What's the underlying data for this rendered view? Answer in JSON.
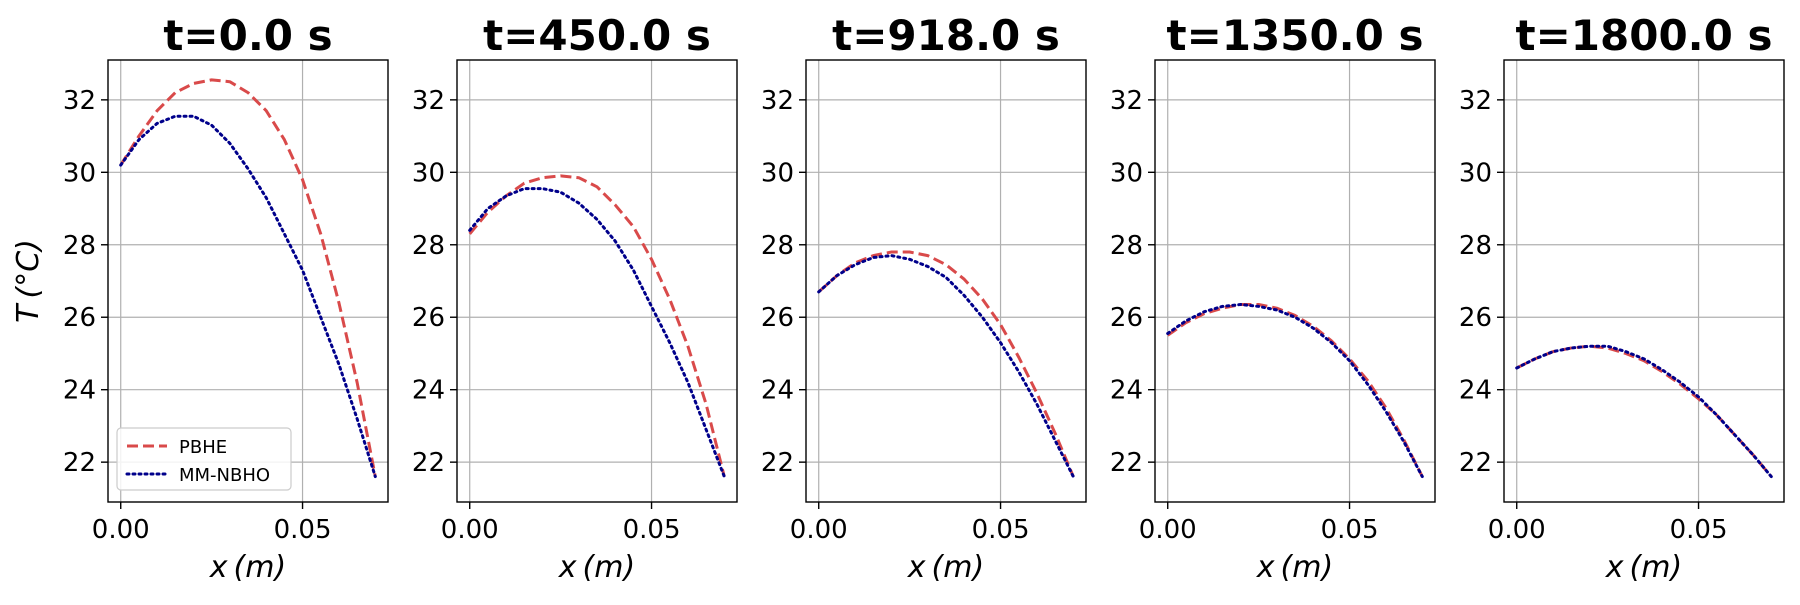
{
  "colors": {
    "pbhe": "#d94a4a",
    "mm_nbho": "#00008b",
    "grid": "#b0b0b0",
    "axes": "#000000"
  },
  "chart_data": [
    {
      "type": "line",
      "title": "t=0.0 s",
      "xlabel": "x (m)",
      "ylabel": "T (°C)",
      "xlim": [
        -0.0035,
        0.0735
      ],
      "ylim": [
        20.9,
        33.1
      ],
      "xticks": [
        0.0,
        0.05
      ],
      "xtick_labels": [
        "0.00",
        "0.05"
      ],
      "yticks": [
        22,
        24,
        26,
        28,
        30,
        32
      ],
      "ytick_labels": [
        "22",
        "24",
        "26",
        "28",
        "30",
        "32"
      ],
      "grid": true,
      "legend": "lower-left",
      "series": [
        {
          "name": "PBHE",
          "style": "dashed",
          "x": [
            0.0,
            0.005,
            0.01,
            0.015,
            0.02,
            0.025,
            0.03,
            0.035,
            0.04,
            0.045,
            0.05,
            0.055,
            0.06,
            0.065,
            0.07
          ],
          "y": [
            30.2,
            31.0,
            31.7,
            32.2,
            32.45,
            32.55,
            32.5,
            32.2,
            31.7,
            30.9,
            29.8,
            28.3,
            26.4,
            24.2,
            21.6
          ]
        },
        {
          "name": "MM-NBHO",
          "style": "dotted",
          "x": [
            0.0,
            0.005,
            0.01,
            0.015,
            0.02,
            0.025,
            0.03,
            0.035,
            0.04,
            0.045,
            0.05,
            0.055,
            0.06,
            0.065,
            0.07
          ],
          "y": [
            30.2,
            30.9,
            31.35,
            31.55,
            31.55,
            31.3,
            30.8,
            30.1,
            29.3,
            28.3,
            27.3,
            26.0,
            24.7,
            23.2,
            21.6
          ]
        }
      ]
    },
    {
      "type": "line",
      "title": "t=450.0 s",
      "xlabel": "x (m)",
      "ylabel": "",
      "xlim": [
        -0.0035,
        0.0735
      ],
      "ylim": [
        20.9,
        33.1
      ],
      "xticks": [
        0.0,
        0.05
      ],
      "xtick_labels": [
        "0.00",
        "0.05"
      ],
      "yticks": [
        22,
        24,
        26,
        28,
        30,
        32
      ],
      "ytick_labels": [
        "22",
        "24",
        "26",
        "28",
        "30",
        "32"
      ],
      "grid": true,
      "series": [
        {
          "name": "PBHE",
          "style": "dashed",
          "x": [
            0.0,
            0.005,
            0.01,
            0.015,
            0.02,
            0.025,
            0.03,
            0.035,
            0.04,
            0.045,
            0.05,
            0.055,
            0.06,
            0.065,
            0.07
          ],
          "y": [
            28.3,
            28.9,
            29.35,
            29.7,
            29.85,
            29.9,
            29.85,
            29.6,
            29.1,
            28.5,
            27.6,
            26.5,
            25.2,
            23.6,
            21.6
          ]
        },
        {
          "name": "MM-NBHO",
          "style": "dotted",
          "x": [
            0.0,
            0.005,
            0.01,
            0.015,
            0.02,
            0.025,
            0.03,
            0.035,
            0.04,
            0.045,
            0.05,
            0.055,
            0.06,
            0.065,
            0.07
          ],
          "y": [
            28.4,
            29.0,
            29.35,
            29.55,
            29.55,
            29.45,
            29.15,
            28.7,
            28.1,
            27.3,
            26.3,
            25.3,
            24.2,
            22.9,
            21.6
          ]
        }
      ]
    },
    {
      "type": "line",
      "title": "t=918.0 s",
      "xlabel": "x (m)",
      "ylabel": "",
      "xlim": [
        -0.0035,
        0.0735
      ],
      "ylim": [
        20.9,
        33.1
      ],
      "xticks": [
        0.0,
        0.05
      ],
      "xtick_labels": [
        "0.00",
        "0.05"
      ],
      "yticks": [
        22,
        24,
        26,
        28,
        30,
        32
      ],
      "ytick_labels": [
        "22",
        "24",
        "26",
        "28",
        "30",
        "32"
      ],
      "grid": true,
      "series": [
        {
          "name": "PBHE",
          "style": "dashed",
          "x": [
            0.0,
            0.005,
            0.01,
            0.015,
            0.02,
            0.025,
            0.03,
            0.035,
            0.04,
            0.045,
            0.05,
            0.055,
            0.06,
            0.065,
            0.07
          ],
          "y": [
            26.7,
            27.15,
            27.5,
            27.7,
            27.8,
            27.8,
            27.7,
            27.45,
            27.05,
            26.5,
            25.8,
            24.9,
            23.9,
            22.8,
            21.6
          ]
        },
        {
          "name": "MM-NBHO",
          "style": "dotted",
          "x": [
            0.0,
            0.005,
            0.01,
            0.015,
            0.02,
            0.025,
            0.03,
            0.035,
            0.04,
            0.045,
            0.05,
            0.055,
            0.06,
            0.065,
            0.07
          ],
          "y": [
            26.7,
            27.15,
            27.45,
            27.65,
            27.7,
            27.6,
            27.4,
            27.1,
            26.6,
            26.0,
            25.3,
            24.5,
            23.6,
            22.6,
            21.6
          ]
        }
      ]
    },
    {
      "type": "line",
      "title": "t=1350.0 s",
      "xlabel": "x (m)",
      "ylabel": "",
      "xlim": [
        -0.0035,
        0.0735
      ],
      "ylim": [
        20.9,
        33.1
      ],
      "xticks": [
        0.0,
        0.05
      ],
      "xtick_labels": [
        "0.00",
        "0.05"
      ],
      "yticks": [
        22,
        24,
        26,
        28,
        30,
        32
      ],
      "ytick_labels": [
        "22",
        "24",
        "26",
        "28",
        "30",
        "32"
      ],
      "grid": true,
      "series": [
        {
          "name": "PBHE",
          "style": "dashed",
          "x": [
            0.0,
            0.005,
            0.01,
            0.015,
            0.02,
            0.025,
            0.03,
            0.035,
            0.04,
            0.045,
            0.05,
            0.055,
            0.06,
            0.065,
            0.07
          ],
          "y": [
            25.5,
            25.85,
            26.1,
            26.25,
            26.35,
            26.35,
            26.25,
            26.05,
            25.75,
            25.35,
            24.85,
            24.25,
            23.5,
            22.6,
            21.6
          ]
        },
        {
          "name": "MM-NBHO",
          "style": "dotted",
          "x": [
            0.0,
            0.005,
            0.01,
            0.015,
            0.02,
            0.025,
            0.03,
            0.035,
            0.04,
            0.045,
            0.05,
            0.055,
            0.06,
            0.065,
            0.07
          ],
          "y": [
            25.55,
            25.9,
            26.15,
            26.3,
            26.35,
            26.3,
            26.2,
            26.0,
            25.7,
            25.3,
            24.8,
            24.15,
            23.4,
            22.55,
            21.6
          ]
        }
      ]
    },
    {
      "type": "line",
      "title": "t=1800.0 s",
      "xlabel": "x (m)",
      "ylabel": "",
      "xlim": [
        -0.0035,
        0.0735
      ],
      "ylim": [
        20.9,
        33.1
      ],
      "xticks": [
        0.0,
        0.05
      ],
      "xtick_labels": [
        "0.00",
        "0.05"
      ],
      "yticks": [
        22,
        24,
        26,
        28,
        30,
        32
      ],
      "ytick_labels": [
        "22",
        "24",
        "26",
        "28",
        "30",
        "32"
      ],
      "grid": true,
      "series": [
        {
          "name": "PBHE",
          "style": "dashed",
          "x": [
            0.0,
            0.005,
            0.01,
            0.015,
            0.02,
            0.025,
            0.03,
            0.035,
            0.04,
            0.045,
            0.05,
            0.055,
            0.06,
            0.065,
            0.07
          ],
          "y": [
            24.6,
            24.85,
            25.05,
            25.15,
            25.2,
            25.15,
            25.0,
            24.8,
            24.5,
            24.15,
            23.75,
            23.3,
            22.75,
            22.2,
            21.6
          ]
        },
        {
          "name": "MM-NBHO",
          "style": "dotted",
          "x": [
            0.0,
            0.005,
            0.01,
            0.015,
            0.02,
            0.025,
            0.03,
            0.035,
            0.04,
            0.045,
            0.05,
            0.055,
            0.06,
            0.065,
            0.07
          ],
          "y": [
            24.6,
            24.85,
            25.05,
            25.15,
            25.2,
            25.2,
            25.05,
            24.85,
            24.55,
            24.2,
            23.8,
            23.3,
            22.75,
            22.2,
            21.6
          ]
        }
      ]
    }
  ]
}
